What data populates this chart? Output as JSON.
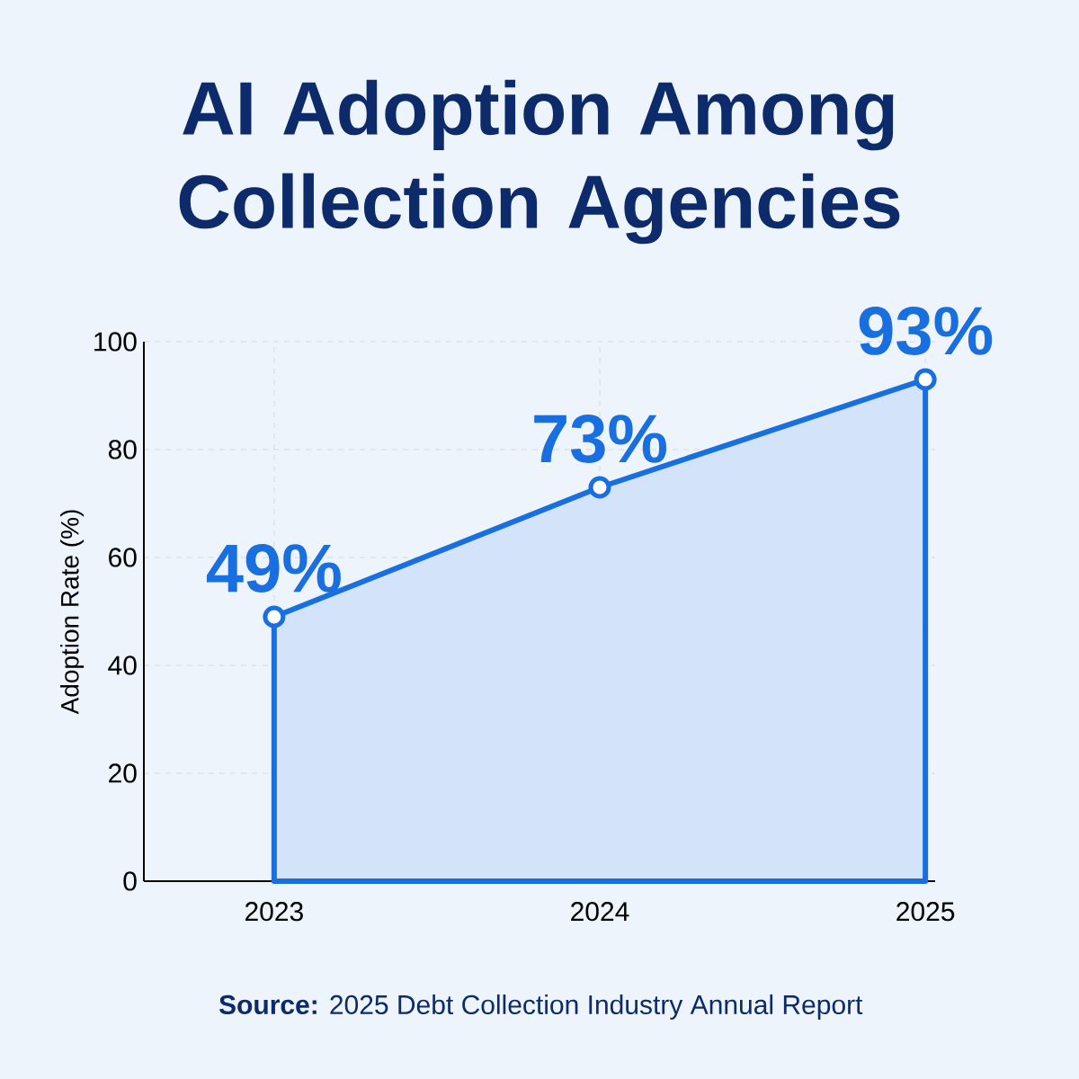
{
  "chart_data": {
    "type": "area",
    "title": "AI Adoption Among Collection Agencies",
    "categories": [
      "2023",
      "2024",
      "2025"
    ],
    "values": [
      49,
      73,
      93
    ],
    "value_labels": [
      "49%",
      "73%",
      "93%"
    ],
    "color": "#1a6fe0",
    "ylabel": "Adoption Rate (%)",
    "ylim": [
      0,
      100
    ],
    "yticks": [
      0,
      20,
      40,
      60,
      80,
      100
    ],
    "grid": true,
    "marker": "circle",
    "line_style": "solid",
    "annotations": [
      "**Source:** 2025 Debt Collection Industry Annual Report"
    ]
  }
}
